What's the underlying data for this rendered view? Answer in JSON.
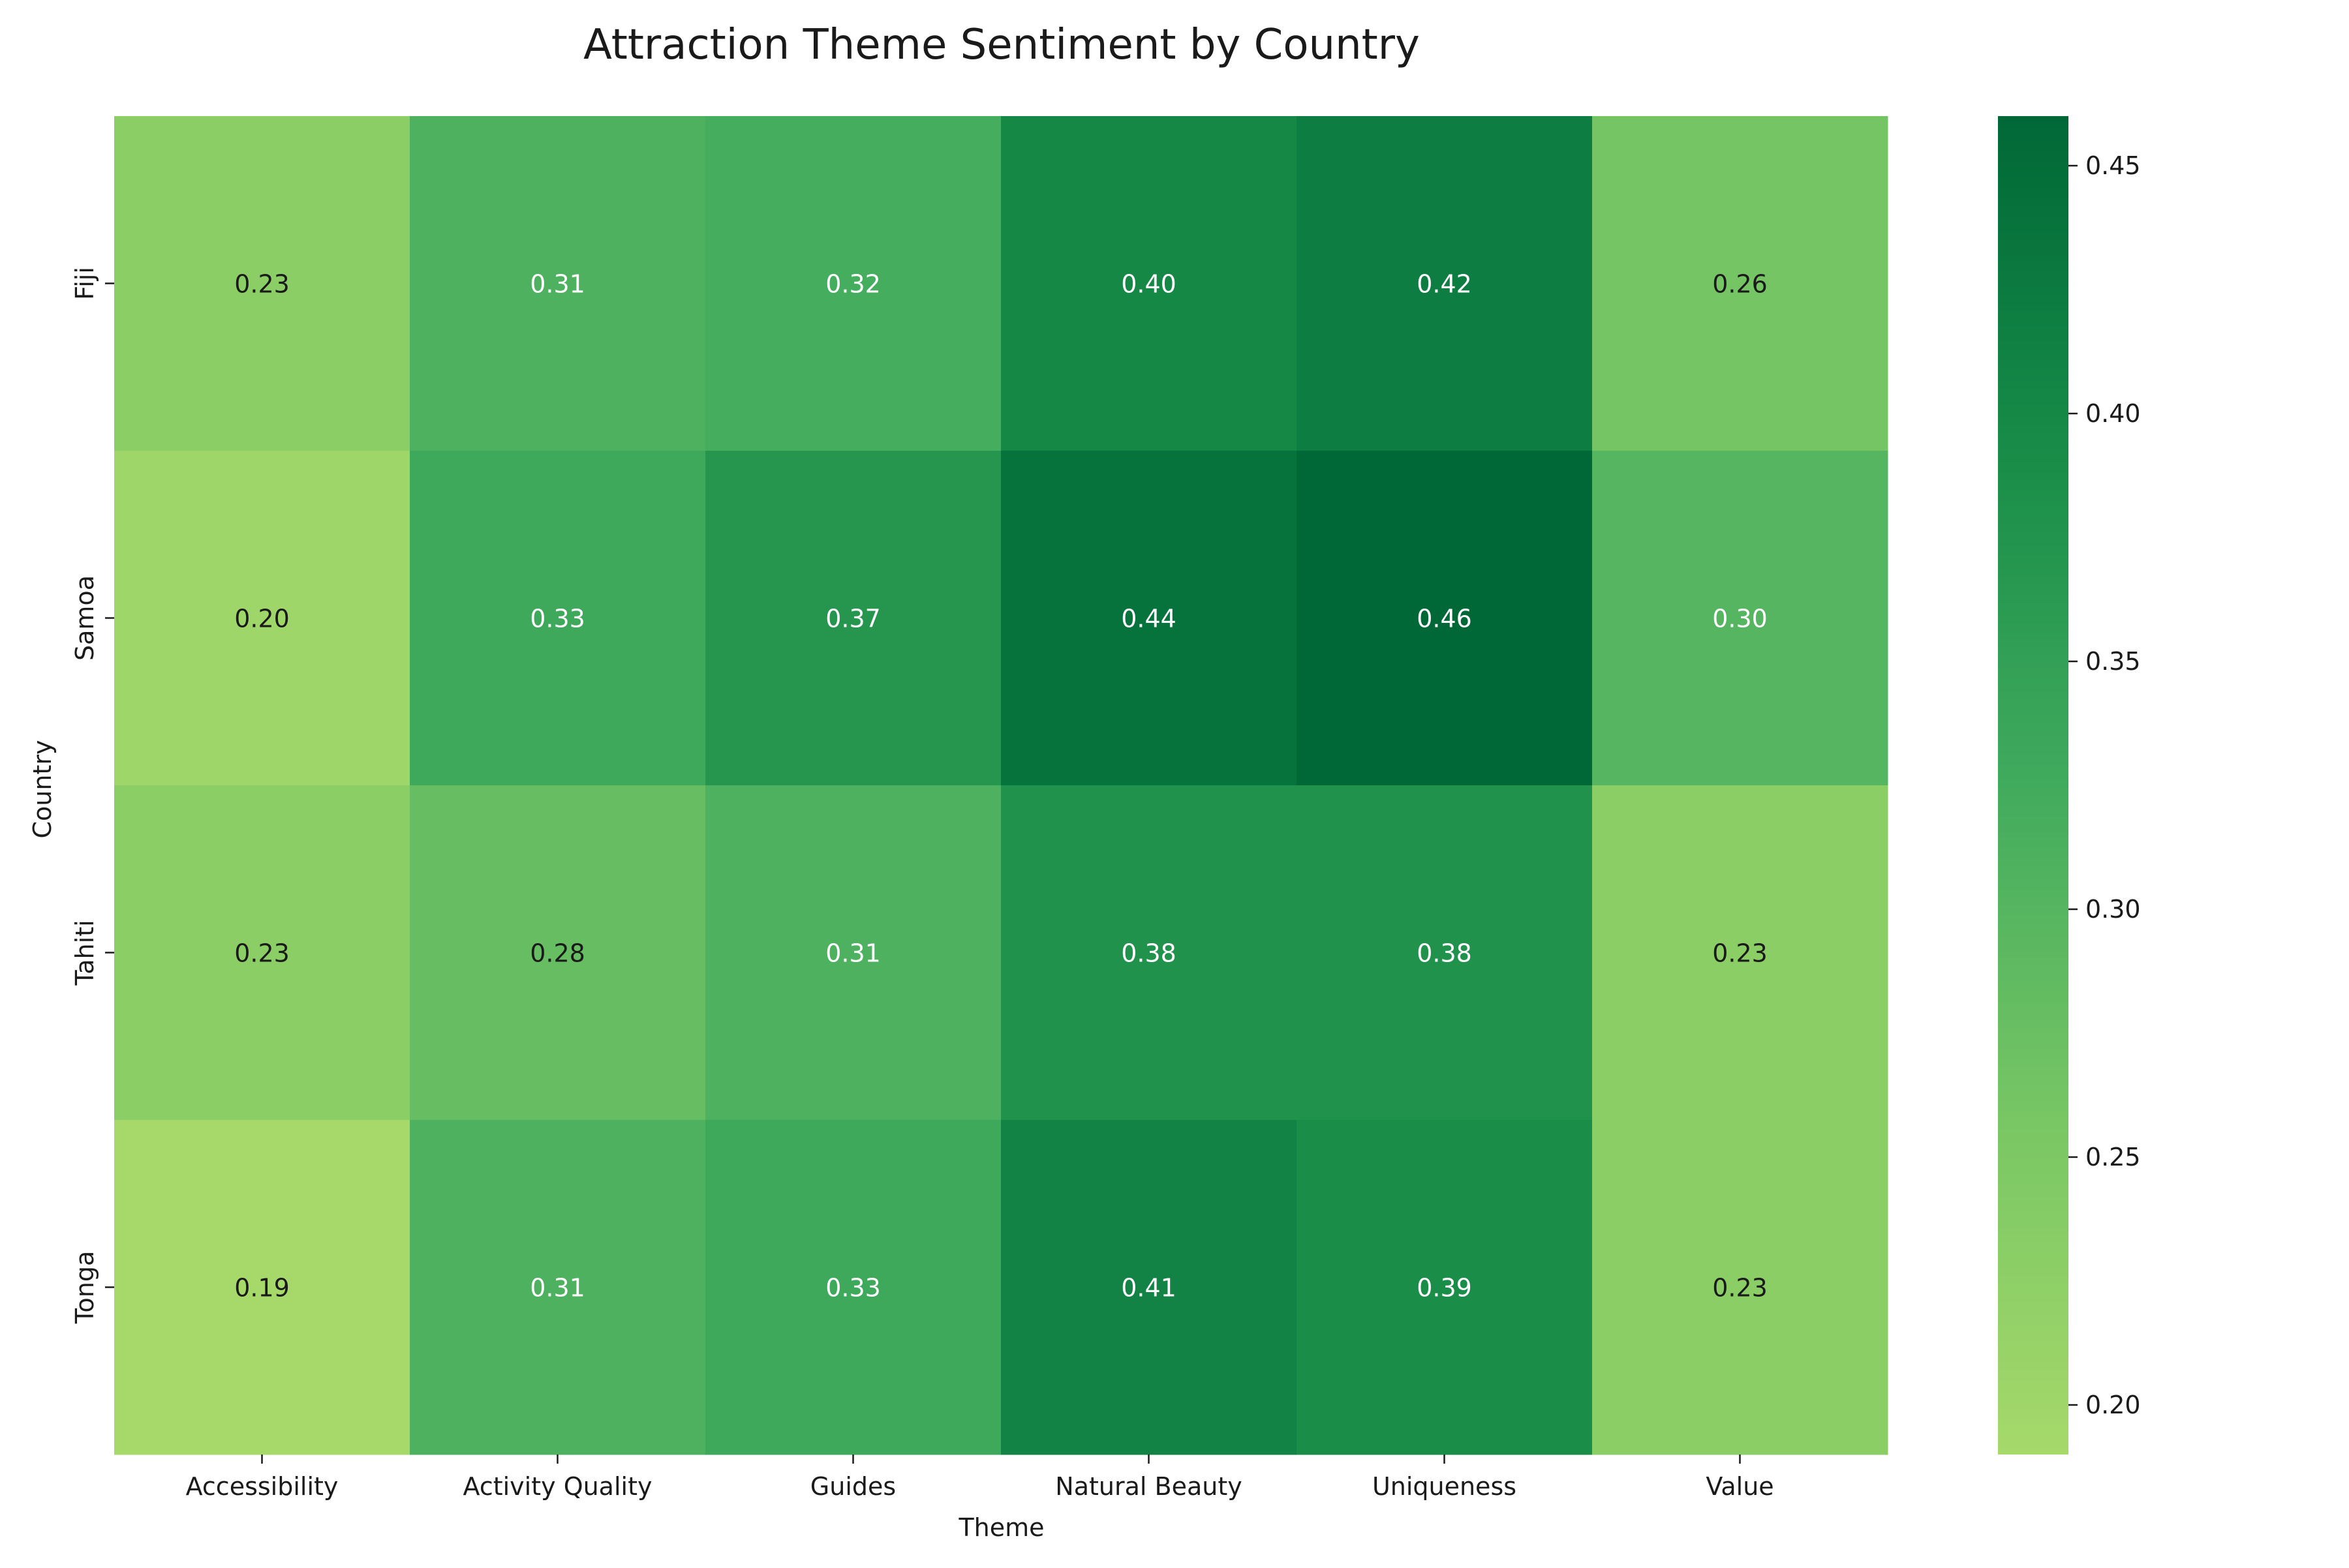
{
  "chart_data": {
    "type": "heatmap",
    "title": "Attraction Theme Sentiment by Country",
    "xlabel": "Theme",
    "ylabel": "Country",
    "x_categories": [
      "Accessibility",
      "Activity Quality",
      "Guides",
      "Natural Beauty",
      "Uniqueness",
      "Value"
    ],
    "y_categories": [
      "Fiji",
      "Samoa",
      "Tahiti",
      "Tonga"
    ],
    "values": [
      [
        0.23,
        0.31,
        0.32,
        0.4,
        0.42,
        0.26
      ],
      [
        0.2,
        0.33,
        0.37,
        0.44,
        0.46,
        0.3
      ],
      [
        0.23,
        0.28,
        0.31,
        0.38,
        0.38,
        0.23
      ],
      [
        0.19,
        0.31,
        0.33,
        0.41,
        0.39,
        0.23
      ]
    ],
    "value_format": "0.00",
    "colormap": "YlGn",
    "color_range": [
      0.19,
      0.46
    ],
    "colorbar": {
      "ticks": [
        0.2,
        0.25,
        0.3,
        0.35,
        0.4,
        0.45
      ],
      "tick_labels": [
        "0.20",
        "0.25",
        "0.30",
        "0.35",
        "0.40",
        "0.45"
      ],
      "placement": "right"
    },
    "annotation_text_colors": {
      "light_cells": "#1a1a1a",
      "dark_cells": "#ffffff"
    },
    "grid": false
  }
}
